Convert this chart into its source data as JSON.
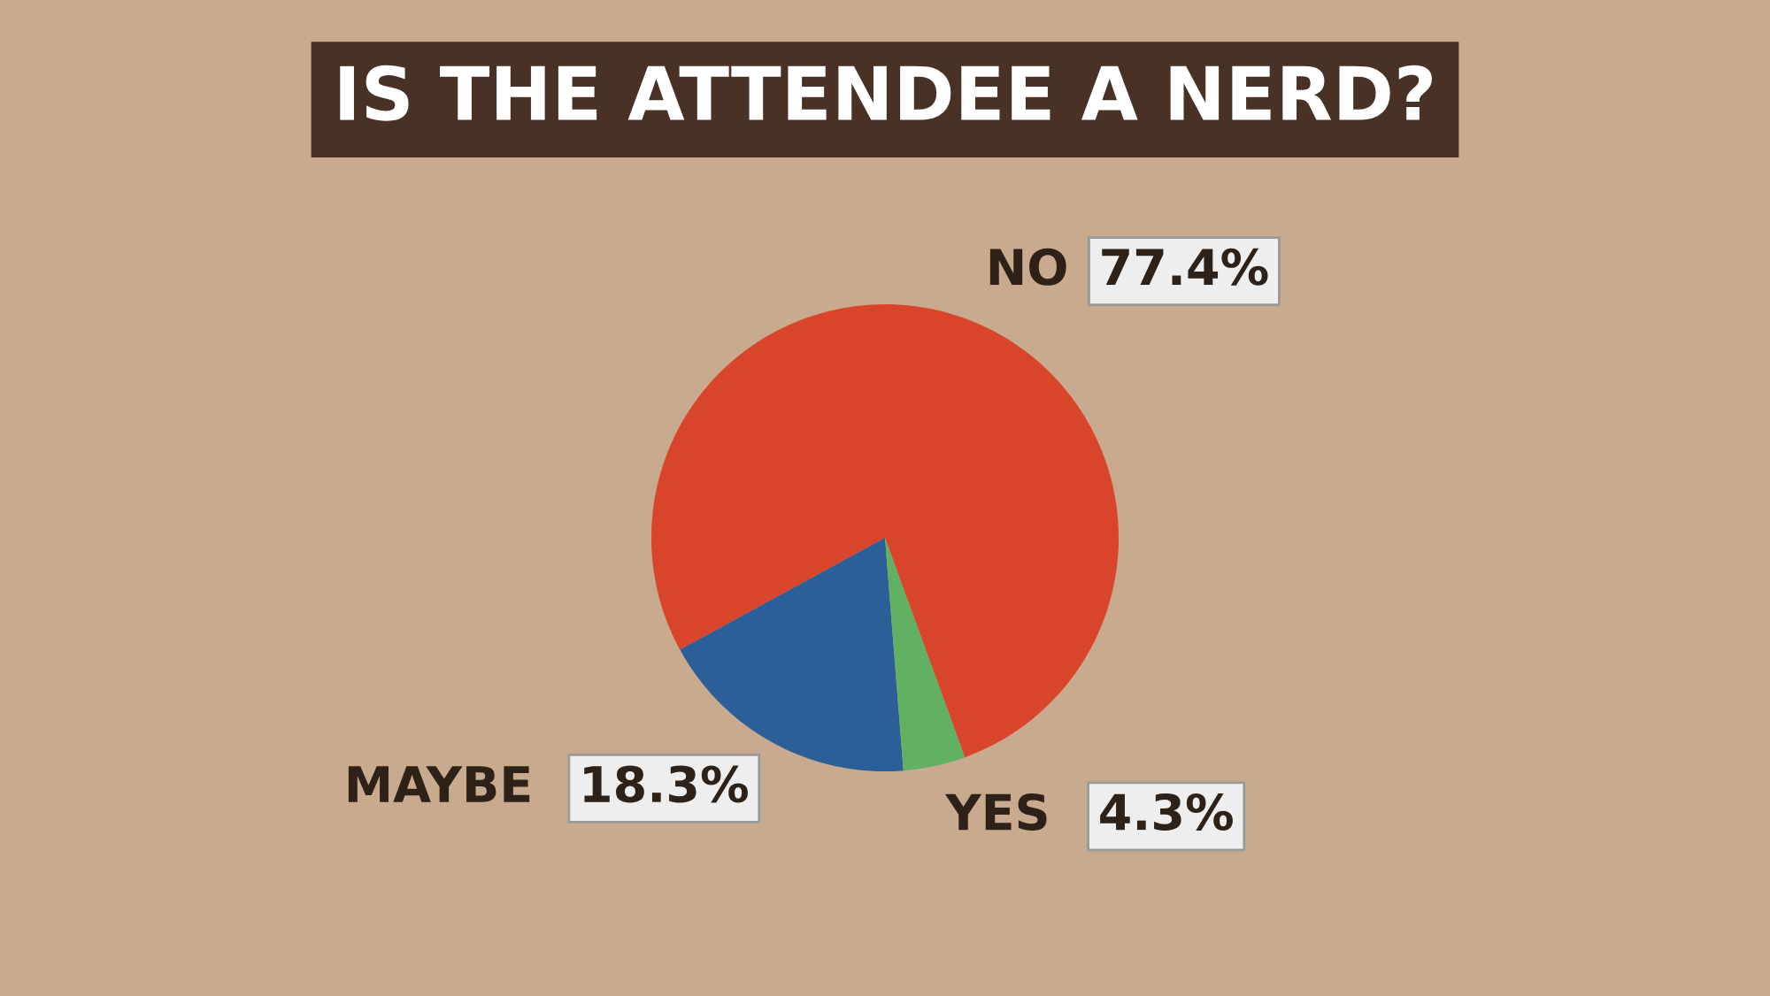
{
  "chart_data": {
    "type": "pie",
    "title": "IS THE ATTENDEE A NERD?",
    "categories": [
      "NO",
      "MAYBE",
      "YES"
    ],
    "values": [
      77.4,
      18.3,
      4.3
    ],
    "value_labels": [
      "77.4%",
      "18.3%",
      "4.3%"
    ],
    "colors": [
      "#d9452b",
      "#2c5f97",
      "#62b162"
    ]
  }
}
